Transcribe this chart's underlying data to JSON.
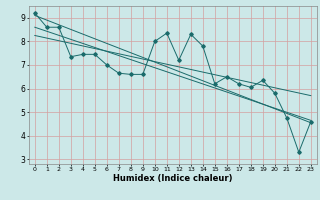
{
  "title": "",
  "xlabel": "Humidex (Indice chaleur)",
  "ylabel": "",
  "bg_color": "#cce8e8",
  "grid_color": "#d4a0a0",
  "line_color": "#1a6b6b",
  "xlim": [
    -0.5,
    23.5
  ],
  "ylim": [
    2.8,
    9.5
  ],
  "yticks": [
    3,
    4,
    5,
    6,
    7,
    8,
    9
  ],
  "xticks": [
    0,
    1,
    2,
    3,
    4,
    5,
    6,
    7,
    8,
    9,
    10,
    11,
    12,
    13,
    14,
    15,
    16,
    17,
    18,
    19,
    20,
    21,
    22,
    23
  ],
  "line1_x": [
    0,
    1,
    2,
    3,
    4,
    5,
    6,
    7,
    8,
    9,
    10,
    11,
    12,
    13,
    14,
    15,
    16,
    17,
    18,
    19,
    20,
    21,
    22,
    23
  ],
  "line1_y": [
    9.2,
    8.6,
    8.6,
    7.35,
    7.45,
    7.45,
    7.0,
    6.65,
    6.6,
    6.6,
    8.0,
    8.35,
    7.2,
    8.3,
    7.8,
    6.2,
    6.5,
    6.2,
    6.05,
    6.35,
    5.8,
    4.75,
    3.3,
    4.6
  ],
  "line2_x": [
    0,
    23
  ],
  "line2_y": [
    9.1,
    4.55
  ],
  "line3_x": [
    0,
    23
  ],
  "line3_y": [
    8.6,
    4.65
  ],
  "line4_x": [
    0,
    23
  ],
  "line4_y": [
    8.25,
    5.7
  ]
}
